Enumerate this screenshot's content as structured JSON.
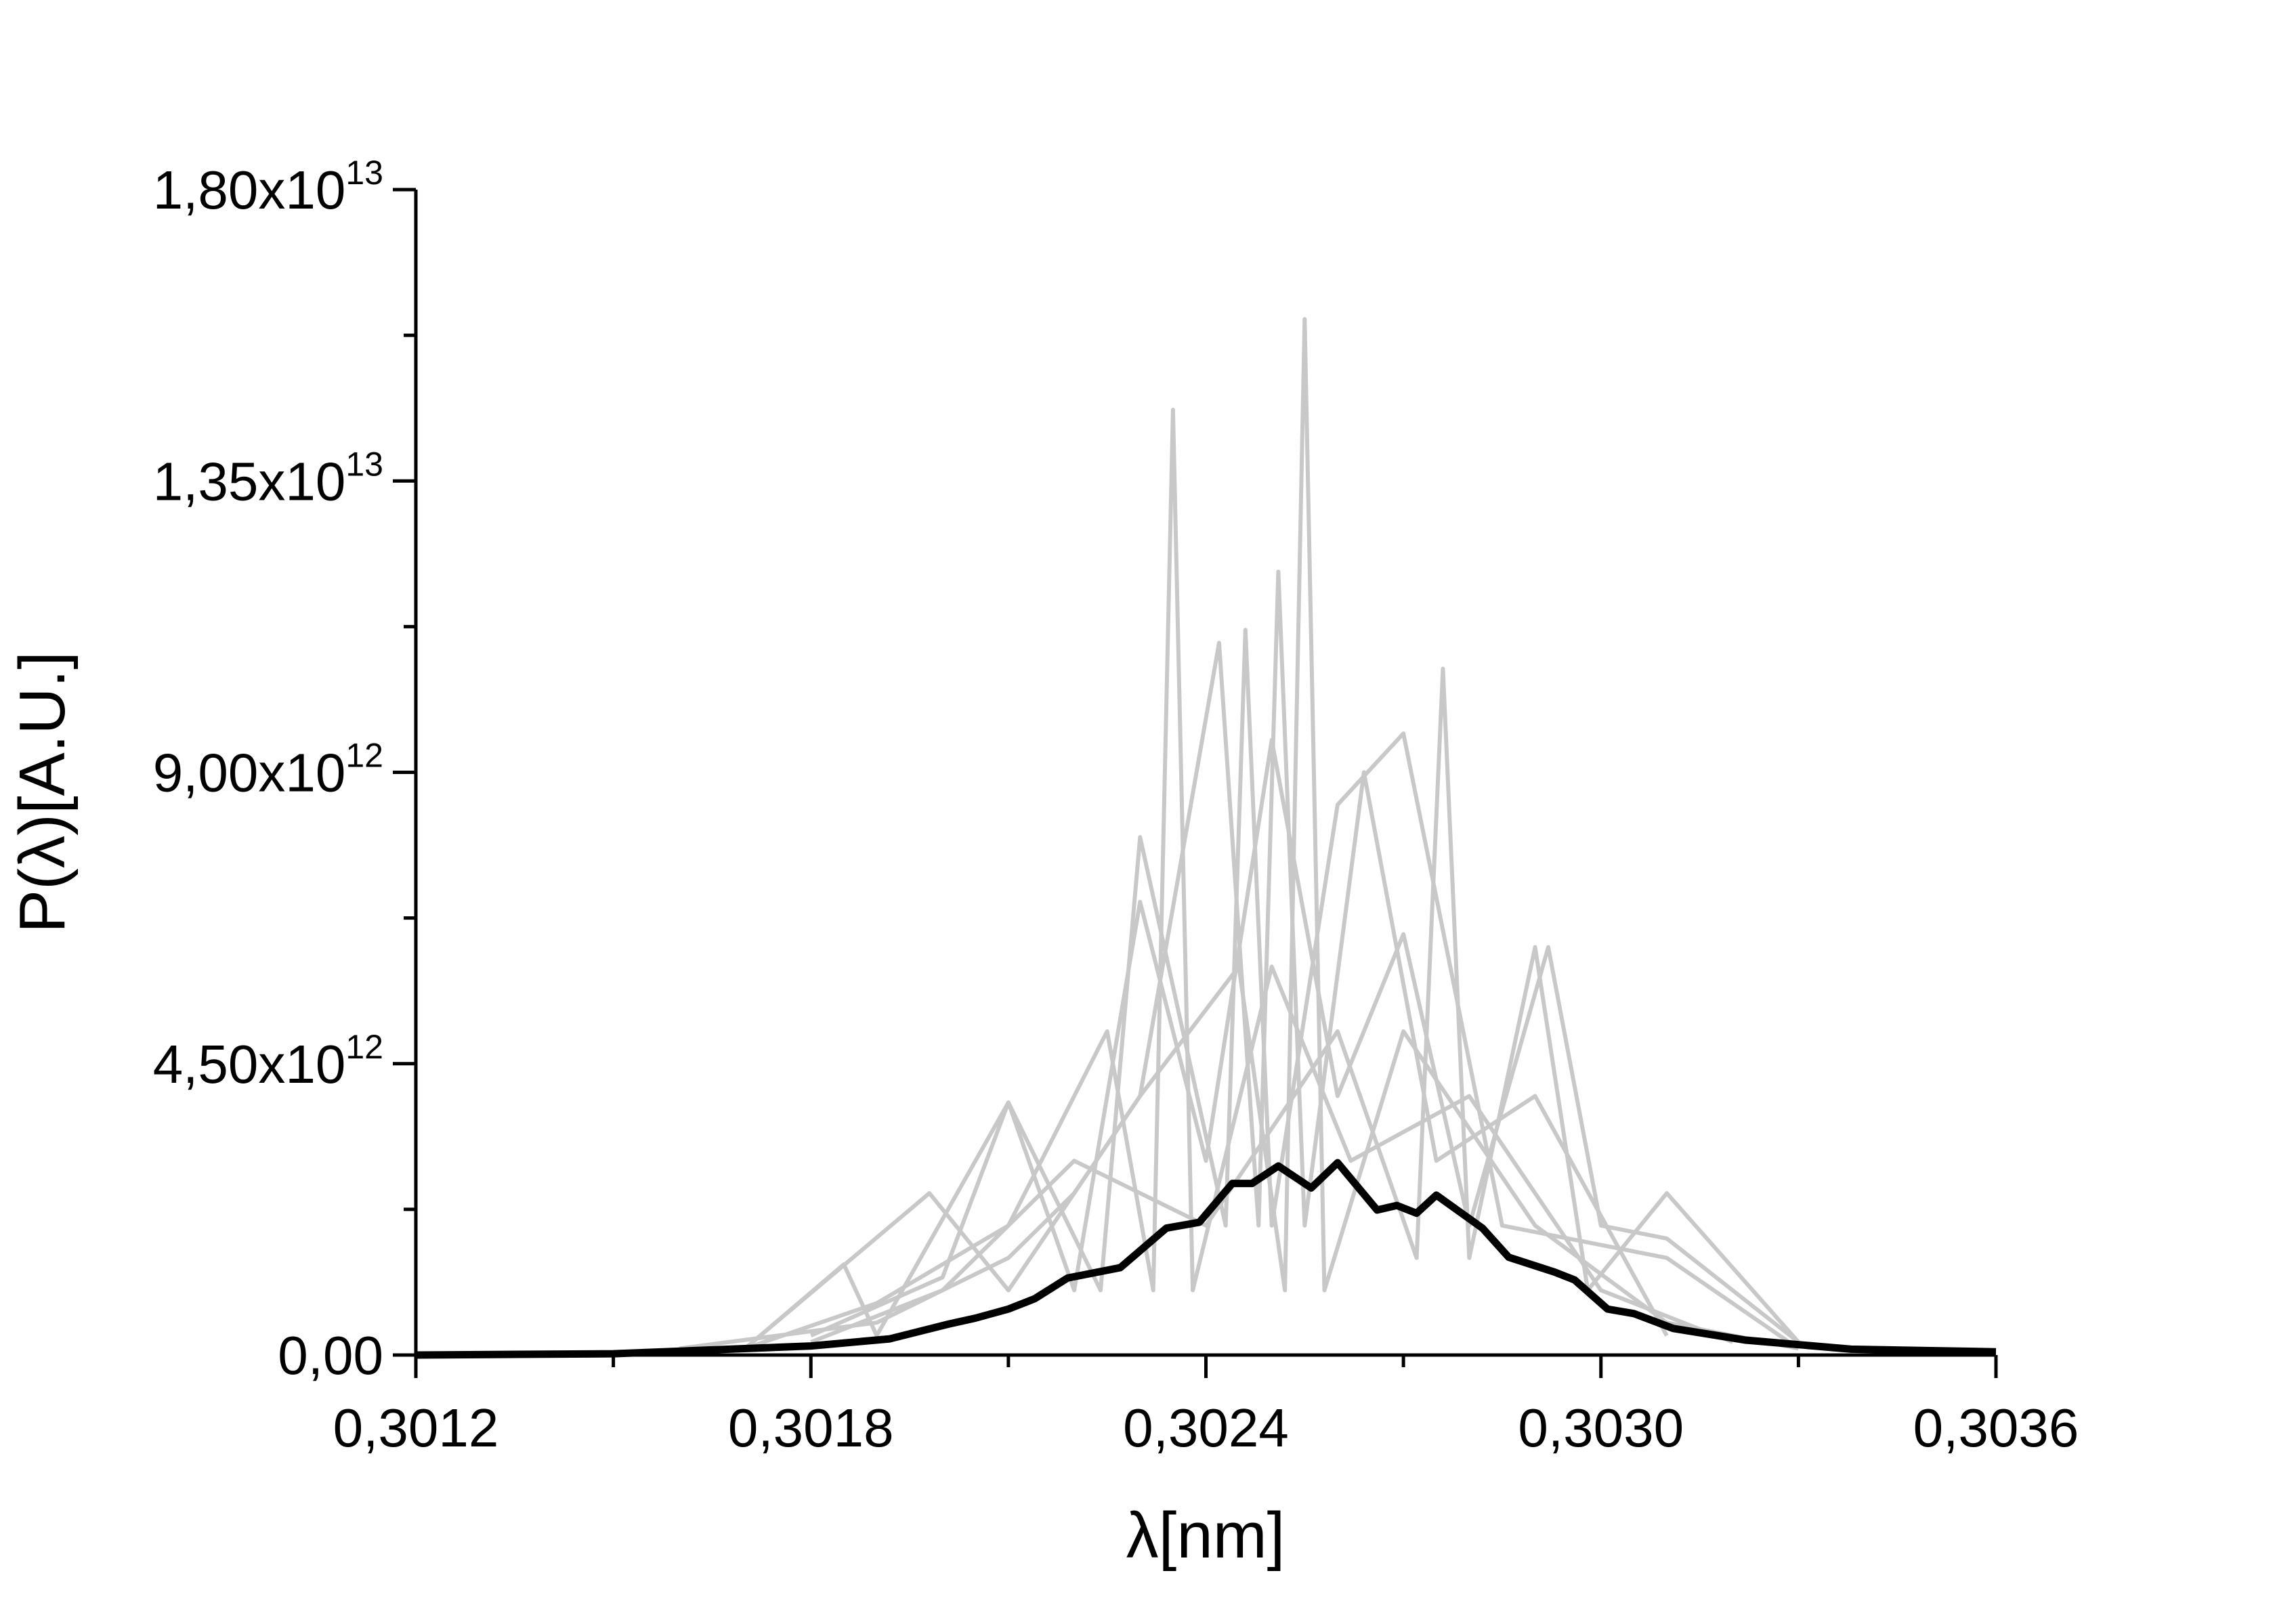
{
  "chart_data": {
    "type": "line",
    "xlabel": "λ[nm]",
    "ylabel": "P(λ)[A.U.]",
    "xlim": [
      0.3012,
      0.3036
    ],
    "xticks": [
      {
        "value": 0.3012,
        "label": "0,3012"
      },
      {
        "value": 0.3018,
        "label": "0,3018"
      },
      {
        "value": 0.3024,
        "label": "0,3024"
      },
      {
        "value": 0.303,
        "label": "0,3030"
      },
      {
        "value": 0.3036,
        "label": "0,3036"
      }
    ],
    "xminor": [
      0.3015,
      0.3021,
      0.3027,
      0.3033
    ],
    "ylim": [
      0,
      18000000000000.0
    ],
    "yticks": [
      {
        "value": 0,
        "label": "0,00"
      },
      {
        "value": 4500000000000.0,
        "label": "4,50x10",
        "sup": "12"
      },
      {
        "value": 9000000000000.0,
        "label": "9,00x10",
        "sup": "12"
      },
      {
        "value": 13500000000000.0,
        "label": "1,35x10",
        "sup": "13"
      },
      {
        "value": 18000000000000.0,
        "label": "1,80x10",
        "sup": "13"
      }
    ],
    "yminor": [
      2250000000000.0,
      6750000000000.0,
      11250000000000.0,
      15750000000000.0
    ],
    "series": [
      {
        "color": "#c8c8c8",
        "x": [
          0.3016,
          0.3019,
          0.3021,
          0.3022,
          0.3023,
          0.30245,
          0.30252,
          0.30255,
          0.30258,
          0.3027,
          0.3029,
          0.3031,
          0.3033
        ],
        "values": [
          100000000000.0,
          500000000000.0,
          1500000000000.0,
          2500000000000.0,
          4000000000000.0,
          6000000000000.0,
          1000000000000.0,
          16000000000000.0,
          1000000000000.0,
          5000000000000.0,
          2000000000000.0,
          500000000000.0,
          100000000000.0
        ]
      },
      {
        "color": "#c8c8c8",
        "x": [
          0.3017,
          0.3019,
          0.3021,
          0.30225,
          0.30232,
          0.30235,
          0.30238,
          0.3025,
          0.30262,
          0.3028,
          0.303,
          0.3032
        ],
        "values": [
          100000000000.0,
          800000000000.0,
          2000000000000.0,
          5000000000000.0,
          1000000000000.0,
          14600000000000.0,
          1000000000000.0,
          6000000000000.0,
          3000000000000.0,
          4000000000000.0,
          1000000000000.0,
          200000000000.0
        ]
      },
      {
        "color": "#c8c8c8",
        "x": [
          0.3018,
          0.302,
          0.3022,
          0.3024,
          0.3026,
          0.30272,
          0.30276,
          0.3028,
          0.3029,
          0.30298,
          0.3031,
          0.3033
        ],
        "values": [
          200000000000.0,
          1000000000000.0,
          3000000000000.0,
          2000000000000.0,
          5000000000000.0,
          1500000000000.0,
          10600000000000.0,
          1500000000000.0,
          6300000000000.0,
          1000000000000.0,
          2500000000000.0,
          200000000000.0
        ]
      },
      {
        "color": "#c8c8c8",
        "x": [
          0.3017,
          0.30198,
          0.3021,
          0.3023,
          0.30242,
          0.30248,
          0.30251,
          0.30255,
          0.30264,
          0.30275,
          0.3029,
          0.3031
        ],
        "values": [
          100000000000.0,
          2500000000000.0,
          1000000000000.0,
          4000000000000.0,
          11000000000000.0,
          2000000000000.0,
          12100000000000.0,
          2000000000000.0,
          9000000000000.0,
          3000000000000.0,
          4000000000000.0,
          300000000000.0
        ]
      },
      {
        "color": "#c8c8c8",
        "x": [
          0.3017,
          0.30185,
          0.3019,
          0.3021,
          0.30224,
          0.3023,
          0.30243,
          0.30246,
          0.3025,
          0.3026,
          0.3027,
          0.30285,
          0.3031,
          0.3033
        ],
        "values": [
          100000000000.0,
          1400000000000.0,
          300000000000.0,
          3900000000000.0,
          1000000000000.0,
          8000000000000.0,
          2000000000000.0,
          11200000000000.0,
          2000000000000.0,
          8500000000000.0,
          9600000000000.0,
          2000000000000.0,
          1500000000000.0,
          100000000000.0
        ]
      },
      {
        "color": "#c8c8c8",
        "x": [
          0.3018,
          0.302,
          0.3021,
          0.3022,
          0.3023,
          0.3024,
          0.3025,
          0.3026,
          0.3027,
          0.3028,
          0.30292,
          0.303,
          0.3031,
          0.3033
        ],
        "values": [
          300000000000.0,
          1200000000000.0,
          3900000000000.0,
          1000000000000.0,
          7000000000000.0,
          3000000000000.0,
          9500000000000.0,
          4000000000000.0,
          6500000000000.0,
          2000000000000.0,
          6300000000000.0,
          2000000000000.0,
          1800000000000.0,
          200000000000.0
        ]
      },
      {
        "color": "#000000",
        "x": [
          0.3012,
          0.3015,
          0.3018,
          0.30192,
          0.30201,
          0.30205,
          0.3021,
          0.30214,
          0.30219,
          0.30227,
          0.30234,
          0.30239,
          0.30244,
          0.30247,
          0.30251,
          0.30256,
          0.3026,
          0.30266,
          0.30269,
          0.30272,
          0.30275,
          0.30282,
          0.30286,
          0.30293,
          0.30296,
          0.30301,
          0.30305,
          0.30311,
          0.30322,
          0.30338,
          0.3036
        ],
        "values": [
          0,
          20000000000.0,
          140000000000.0,
          250000000000.0,
          480000000000.0,
          570000000000.0,
          710000000000.0,
          870000000000.0,
          1190000000000.0,
          1350000000000.0,
          1960000000000.0,
          2050000000000.0,
          2650000000000.0,
          2650000000000.0,
          2920000000000.0,
          2580000000000.0,
          2970000000000.0,
          2240000000000.0,
          2310000000000.0,
          2190000000000.0,
          2470000000000.0,
          1960000000000.0,
          1510000000000.0,
          1280000000000.0,
          1160000000000.0,
          710000000000.0,
          640000000000.0,
          410000000000.0,
          230000000000.0,
          90000000000.0,
          50000000000.0
        ]
      }
    ]
  }
}
